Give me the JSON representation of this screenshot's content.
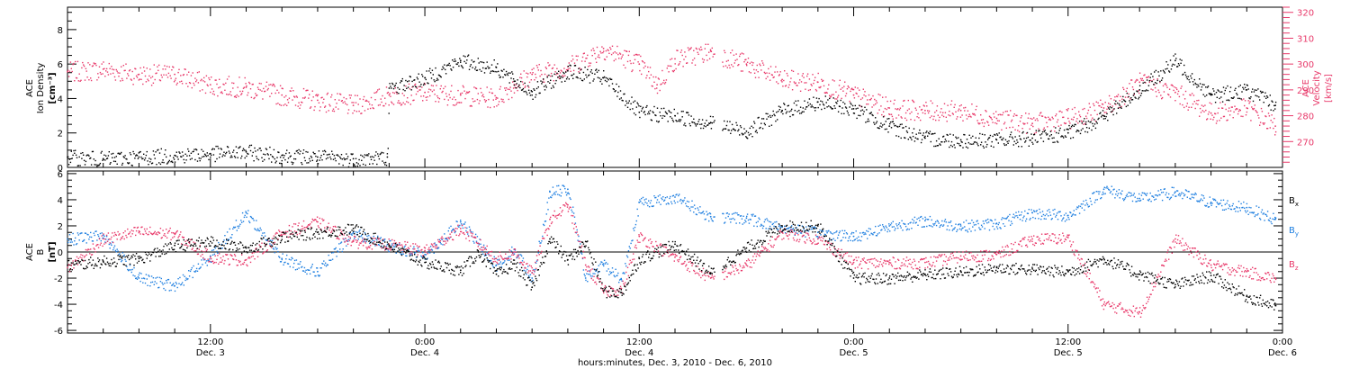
{
  "colors": {
    "black": "#000000",
    "pink": "#e8396a",
    "blue": "#1f7fe0"
  },
  "x_axis": {
    "label": "hours:minutes, Dec.  3, 2010 - Dec.  6, 2010",
    "ticks": [
      {
        "time": "12:00",
        "date": "Dec. 3"
      },
      {
        "time": "0:00",
        "date": "Dec. 4"
      },
      {
        "time": "12:00",
        "date": "Dec. 4"
      },
      {
        "time": "0:00",
        "date": "Dec. 5"
      },
      {
        "time": "12:00",
        "date": "Dec. 5"
      },
      {
        "time": "0:00",
        "date": "Dec. 6"
      }
    ],
    "range_hours_since_dec3": [
      4,
      72
    ]
  },
  "chart_data": [
    {
      "type": "scatter",
      "panel": "top",
      "ylabel_left": [
        "ACE",
        "Ion Density"
      ],
      "ylabel_left_unit": "[cm⁻³]",
      "ylabel_right": [
        "ACE",
        "Velocity"
      ],
      "ylabel_right_unit": "[km/s]",
      "left_ylim": [
        0,
        9.3
      ],
      "left_ticks": [
        "0",
        "2",
        "4",
        "6",
        "8"
      ],
      "right_ylim": [
        260,
        322
      ],
      "right_ticks": [
        "270",
        "280",
        "290",
        "300",
        "310",
        "320"
      ],
      "series": [
        {
          "name": "Ion Density",
          "axis": "left",
          "color": "#000000",
          "x": [
            4,
            6,
            8,
            10,
            12,
            14,
            16,
            18,
            20,
            21.9,
            22,
            24,
            26,
            28,
            29,
            30,
            32,
            34,
            36,
            38,
            40,
            42,
            44,
            46,
            48,
            50,
            52,
            54,
            56,
            58,
            60,
            61,
            62,
            64,
            66,
            68,
            70,
            71.6
          ],
          "y": [
            0.6,
            0.5,
            0.6,
            0.7,
            0.8,
            0.9,
            0.7,
            0.6,
            0.5,
            0.6,
            4.6,
            5.2,
            6.2,
            5.8,
            5.0,
            4.4,
            5.6,
            5.2,
            3.2,
            3.0,
            2.6,
            2.1,
            3.3,
            3.8,
            3.4,
            2.4,
            1.7,
            1.6,
            1.6,
            1.7,
            2.0,
            2.5,
            3.0,
            4.5,
            6.2,
            4.2,
            4.5,
            3.6
          ]
        },
        {
          "name": "Velocity",
          "axis": "right",
          "color": "#e8396a",
          "x": [
            4,
            6,
            8,
            10,
            12,
            14,
            16,
            18,
            20,
            22,
            24,
            26,
            28,
            29,
            30,
            32,
            34,
            36,
            37,
            38,
            40,
            42,
            44,
            46,
            48,
            50,
            52,
            54,
            56,
            58,
            60,
            62,
            64,
            66,
            68,
            70,
            71.6
          ],
          "y": [
            297,
            298,
            296,
            296,
            292,
            291,
            288,
            286,
            284,
            288,
            289,
            288,
            287,
            292,
            296,
            299,
            306,
            300,
            292,
            302,
            305,
            300,
            294,
            293,
            288,
            283,
            282,
            282,
            279,
            277,
            279,
            283,
            293,
            289,
            281,
            283,
            276
          ]
        }
      ]
    },
    {
      "type": "scatter",
      "panel": "bottom",
      "ylabel_left": [
        "ACE",
        "B"
      ],
      "ylabel_left_unit": "[nT]",
      "ylim": [
        -6.2,
        6.2
      ],
      "ticks": [
        "-6",
        "-4",
        "-2",
        "0",
        "2",
        "4",
        "6"
      ],
      "series": [
        {
          "name": "Bx",
          "label_main": "B",
          "label_sub": "x",
          "color": "#000000",
          "x": [
            4,
            6,
            8,
            10,
            12,
            14,
            16,
            18,
            20,
            22,
            24,
            26,
            27,
            28,
            29,
            30,
            31,
            32,
            33,
            34,
            35,
            36,
            38,
            40,
            42,
            44,
            46,
            48,
            50,
            52,
            54,
            56,
            58,
            60,
            62,
            64,
            66,
            68,
            70,
            71.6
          ],
          "y": [
            -1.0,
            -0.7,
            -0.5,
            0.5,
            0.8,
            0.3,
            1.2,
            1.5,
            1.8,
            0.5,
            -0.8,
            -1.4,
            0.0,
            -1.7,
            -0.9,
            -2.7,
            1.0,
            -0.6,
            0.8,
            -3.0,
            -3.1,
            -0.5,
            0.6,
            -1.6,
            0.3,
            2.0,
            2.0,
            -2.0,
            -2.0,
            -1.7,
            -1.5,
            -1.2,
            -1.3,
            -1.5,
            -0.5,
            -1.7,
            -2.5,
            -1.8,
            -3.4,
            -4.1
          ]
        },
        {
          "name": "By",
          "label_main": "B",
          "label_sub": "y",
          "color": "#1f7fe0",
          "x": [
            4,
            6,
            8,
            10,
            12,
            14,
            16,
            18,
            20,
            22,
            24,
            26,
            28,
            29,
            30,
            31,
            32,
            33,
            34,
            35,
            36,
            38,
            40,
            42,
            44,
            46,
            48,
            50,
            52,
            54,
            56,
            58,
            60,
            62,
            64,
            66,
            68,
            70,
            71.6
          ],
          "y": [
            1.0,
            1.3,
            -2.0,
            -2.6,
            -0.3,
            3.0,
            -0.5,
            -1.5,
            1.5,
            0.5,
            -0.2,
            2.3,
            -1.0,
            0.2,
            -2.0,
            4.6,
            4.8,
            -2.0,
            -0.9,
            -2.1,
            3.8,
            4.2,
            2.7,
            2.6,
            1.9,
            1.5,
            1.2,
            2.0,
            2.4,
            2.0,
            2.2,
            3.0,
            2.8,
            4.8,
            4.1,
            4.6,
            3.8,
            3.4,
            2.5
          ]
        },
        {
          "name": "Bz",
          "label_main": "B",
          "label_sub": "z",
          "color": "#e8396a",
          "x": [
            4,
            6,
            8,
            10,
            12,
            14,
            16,
            18,
            20,
            22,
            24,
            26,
            28,
            29,
            30,
            31,
            32,
            33,
            34,
            35,
            36,
            38,
            40,
            42,
            44,
            46,
            48,
            50,
            52,
            54,
            56,
            58,
            60,
            62,
            64,
            66,
            68,
            70,
            71.6
          ],
          "y": [
            -1.2,
            1.0,
            1.6,
            1.4,
            -0.4,
            -0.6,
            1.5,
            2.3,
            0.8,
            0.6,
            0.1,
            1.8,
            -0.5,
            0.0,
            -1.6,
            2.5,
            3.6,
            -1.0,
            -3.0,
            -2.8,
            1.2,
            -0.4,
            -2.0,
            -1.0,
            1.5,
            1.0,
            -0.8,
            -0.8,
            -0.8,
            -0.3,
            -0.2,
            1.0,
            1.1,
            -4.0,
            -4.6,
            1.0,
            -1.0,
            -1.5,
            -2.0
          ]
        }
      ]
    }
  ]
}
